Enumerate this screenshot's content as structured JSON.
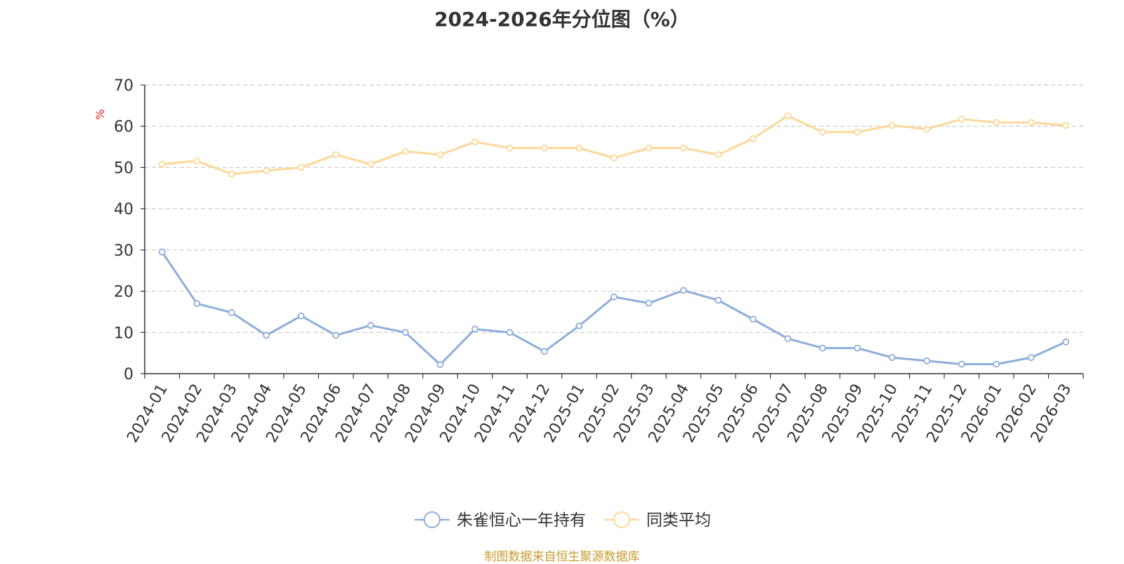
{
  "chart_data": {
    "type": "line",
    "title": "2024-2026年分位图（%）",
    "ylabel": "%",
    "ylim": [
      0,
      70
    ],
    "yticks": [
      0,
      10,
      20,
      30,
      40,
      50,
      60,
      70
    ],
    "grid": true,
    "legend_position": "bottom",
    "categories": [
      "2024-01",
      "2024-02",
      "2024-03",
      "2024-04",
      "2024-05",
      "2024-06",
      "2024-07",
      "2024-08",
      "2024-09",
      "2024-10",
      "2024-11",
      "2024-12",
      "2025-01",
      "2025-02",
      "2025-03",
      "2025-04",
      "2025-05",
      "2025-06",
      "2025-07",
      "2025-08",
      "2025-09",
      "2025-10",
      "2025-11",
      "2025-12",
      "2026-01",
      "2026-02",
      "2026-03"
    ],
    "series": [
      {
        "name": "朱雀恒心一年持有",
        "color": "#8eaedb",
        "values": [
          29.5,
          17.0,
          14.8,
          9.3,
          14.0,
          9.3,
          11.7,
          10.0,
          2.2,
          10.8,
          10.0,
          5.4,
          11.6,
          18.6,
          17.1,
          20.2,
          17.8,
          13.2,
          8.5,
          6.2,
          6.2,
          3.9,
          3.1,
          2.3,
          2.3,
          3.9,
          7.7
        ]
      },
      {
        "name": "同类平均",
        "color": "#fdd898",
        "values": [
          50.8,
          51.6,
          48.4,
          49.2,
          50.0,
          53.1,
          50.8,
          53.9,
          53.1,
          56.2,
          54.7,
          54.7,
          54.7,
          52.3,
          54.7,
          54.7,
          53.1,
          57.0,
          62.5,
          58.6,
          58.6,
          60.2,
          59.3,
          61.7,
          60.9,
          60.9,
          60.2
        ]
      }
    ]
  },
  "source_note": "制图数据来自恒生聚源数据库"
}
